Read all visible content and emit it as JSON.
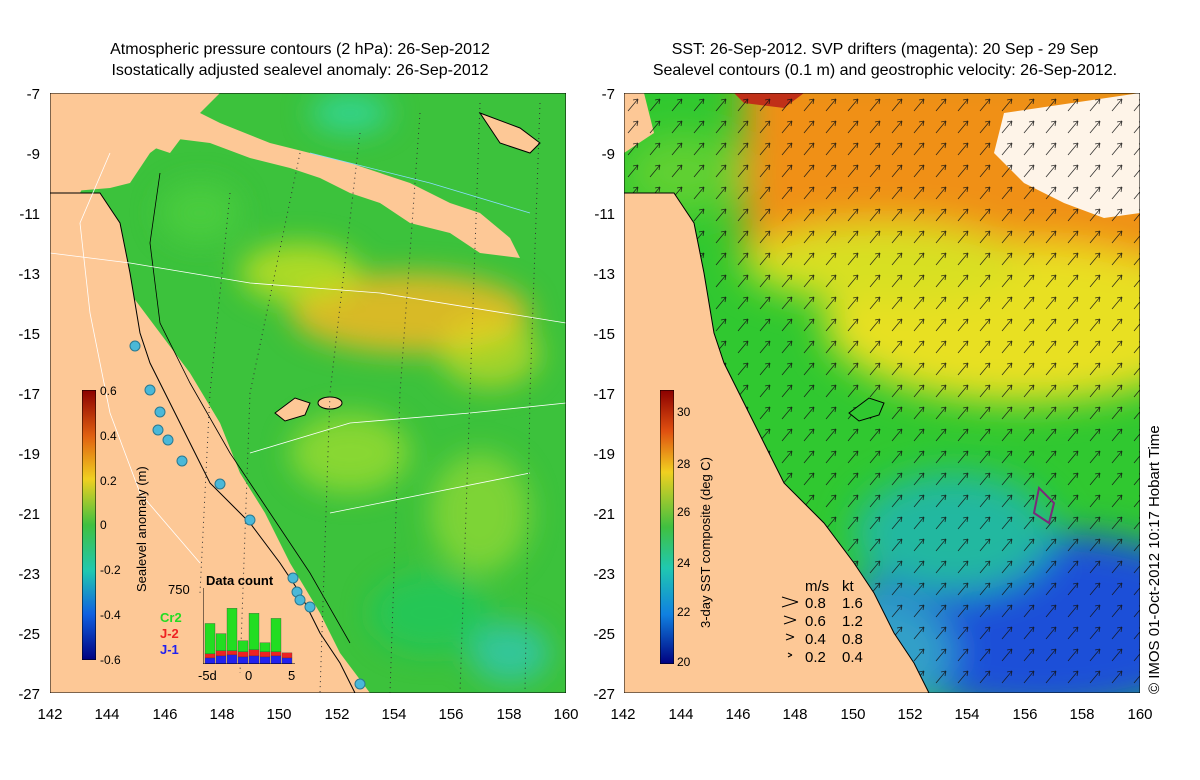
{
  "left_panel": {
    "title_line1": "Atmospheric pressure contours (2 hPa): 26-Sep-2012",
    "title_line2": "Isostatically adjusted sealevel anomaly: 26-Sep-2012",
    "colorbar_label": "Sealevel anomaly (m)",
    "colorbar_ticks": [
      "0.6",
      "0.4",
      "0.2",
      "0",
      "-0.2",
      "-0.4",
      "-0.6"
    ],
    "inset": {
      "title": "Data count",
      "ymax_label": "750",
      "x_tick_labels": [
        "-5d",
        "0",
        "5"
      ],
      "legend": [
        {
          "label": "Cr2",
          "color": "#22dd22"
        },
        {
          "label": "J-2",
          "color": "#ee2222"
        },
        {
          "label": "J-1",
          "color": "#2222ee"
        }
      ],
      "bars": [
        {
          "j1": 60,
          "j2": 40,
          "cr2": 300
        },
        {
          "j1": 80,
          "j2": 50,
          "cr2": 170
        },
        {
          "j1": 90,
          "j2": 40,
          "cr2": 420
        },
        {
          "j1": 70,
          "j2": 50,
          "cr2": 110
        },
        {
          "j1": 80,
          "j2": 60,
          "cr2": 360
        },
        {
          "j1": 70,
          "j2": 50,
          "cr2": 90
        },
        {
          "j1": 80,
          "j2": 40,
          "cr2": 330
        },
        {
          "j1": 60,
          "j2": 50,
          "cr2": 0
        }
      ]
    }
  },
  "right_panel": {
    "title_line1": "SST: 26-Sep-2012. SVP drifters (magenta): 20 Sep - 29 Sep",
    "title_line2": "Sealevel contours (0.1 m) and geostrophic velocity: 26-Sep-2012.",
    "colorbar_label": "3-day SST composite (deg C)",
    "colorbar_ticks": [
      "30",
      "28",
      "26",
      "24",
      "22",
      "20"
    ],
    "speed_legend": {
      "header_ms": "m/s",
      "header_kt": "kt",
      "rows": [
        {
          "ms": "0.8",
          "kt": "1.6"
        },
        {
          "ms": "0.6",
          "kt": "1.2"
        },
        {
          "ms": "0.4",
          "kt": "0.8"
        },
        {
          "ms": "0.2",
          "kt": "0.4"
        }
      ]
    }
  },
  "axes": {
    "lat_ticks": [
      "-7",
      "-9",
      "-11",
      "-13",
      "-15",
      "-17",
      "-19",
      "-21",
      "-23",
      "-25",
      "-27"
    ],
    "lon_ticks": [
      "142",
      "144",
      "146",
      "148",
      "150",
      "152",
      "154",
      "156",
      "158",
      "160"
    ]
  },
  "credit": "© IMOS 01-Oct-2012 10:17 Hobart Time",
  "colors": {
    "land": "#fdc896",
    "sla_ocean": "#3cc23c",
    "sst_warm": "#f09018",
    "sst_cool": "#1e50d8"
  }
}
